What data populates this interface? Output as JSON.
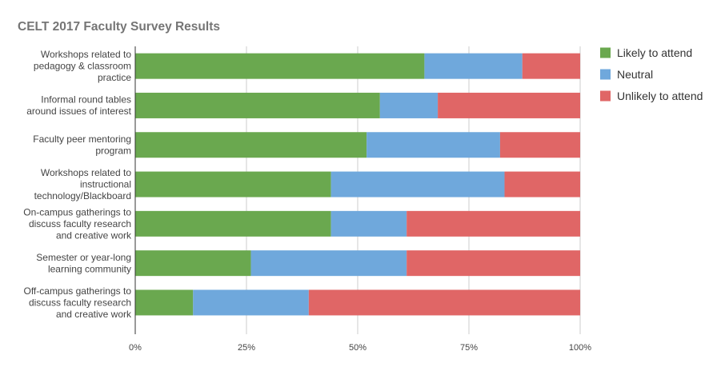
{
  "chart_data": {
    "type": "bar",
    "orientation": "horizontal",
    "stacked": "percent",
    "title": "CELT 2017 Faculty Survey Results",
    "xlabel": "",
    "ylabel": "",
    "xlim": [
      0,
      100
    ],
    "x_ticks": [
      "0%",
      "25%",
      "50%",
      "75%",
      "100%"
    ],
    "grid": true,
    "legend_position": "right",
    "categories": [
      [
        "Workshops related to",
        "pedagogy & classroom",
        "practice"
      ],
      [
        "Informal round tables",
        "around issues of interest"
      ],
      [
        "Faculty peer mentoring",
        "program"
      ],
      [
        "Workshops related to",
        "instructional",
        "technology/Blackboard"
      ],
      [
        "On-campus gatherings to",
        "discuss faculty research",
        "and creative work"
      ],
      [
        "Semester or year-long",
        "learning community"
      ],
      [
        "Off-campus gatherings to",
        "discuss faculty research",
        "and creative work"
      ]
    ],
    "series": [
      {
        "name": "Likely to attend",
        "color": "#6aa84f",
        "values": [
          65,
          55,
          52,
          44,
          44,
          26,
          13
        ]
      },
      {
        "name": "Neutral",
        "color": "#6fa8dc",
        "values": [
          22,
          13,
          30,
          39,
          17,
          35,
          26
        ]
      },
      {
        "name": "Unlikely to attend",
        "color": "#e06666",
        "values": [
          13,
          32,
          18,
          17,
          39,
          39,
          61
        ]
      }
    ]
  }
}
